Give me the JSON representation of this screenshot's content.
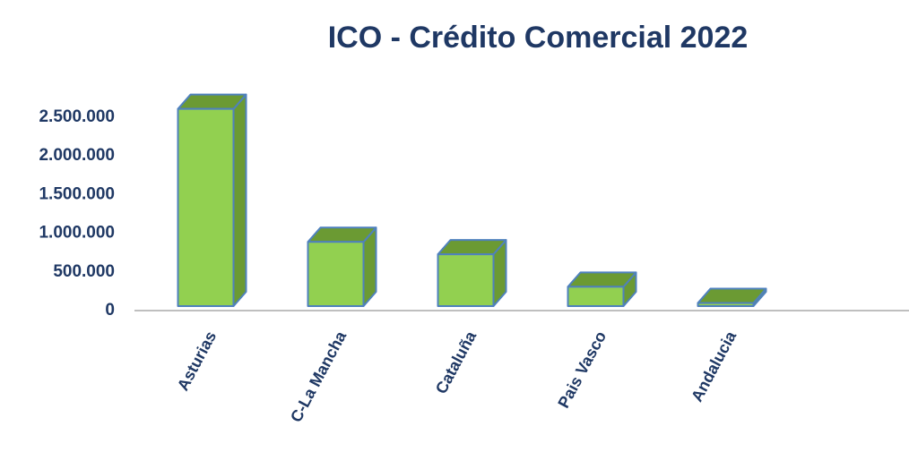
{
  "chart_data": {
    "type": "bar3d",
    "title": "ICO - Crédito Comercial 2022",
    "categories": [
      "Asturias",
      "C-La Mancha",
      "Cataluña",
      "Pais Vasco",
      "Andalucia"
    ],
    "values": [
      2550000,
      830000,
      670000,
      250000,
      40000
    ],
    "color": "#92d050",
    "side_color": "#6b9a33",
    "edge_color": "#4f81bd",
    "ylim": [
      0,
      2500000
    ],
    "yticks": [
      0,
      {
        "value": 500000,
        "label": "500.000"
      },
      {
        "value": 1000000,
        "label": "1.000.000"
      },
      {
        "value": 1500000,
        "label": "1.500.000"
      },
      {
        "value": 2000000,
        "label": "2.000.000"
      },
      {
        "value": 2500000,
        "label": "2.500.000"
      }
    ],
    "grid": false
  }
}
